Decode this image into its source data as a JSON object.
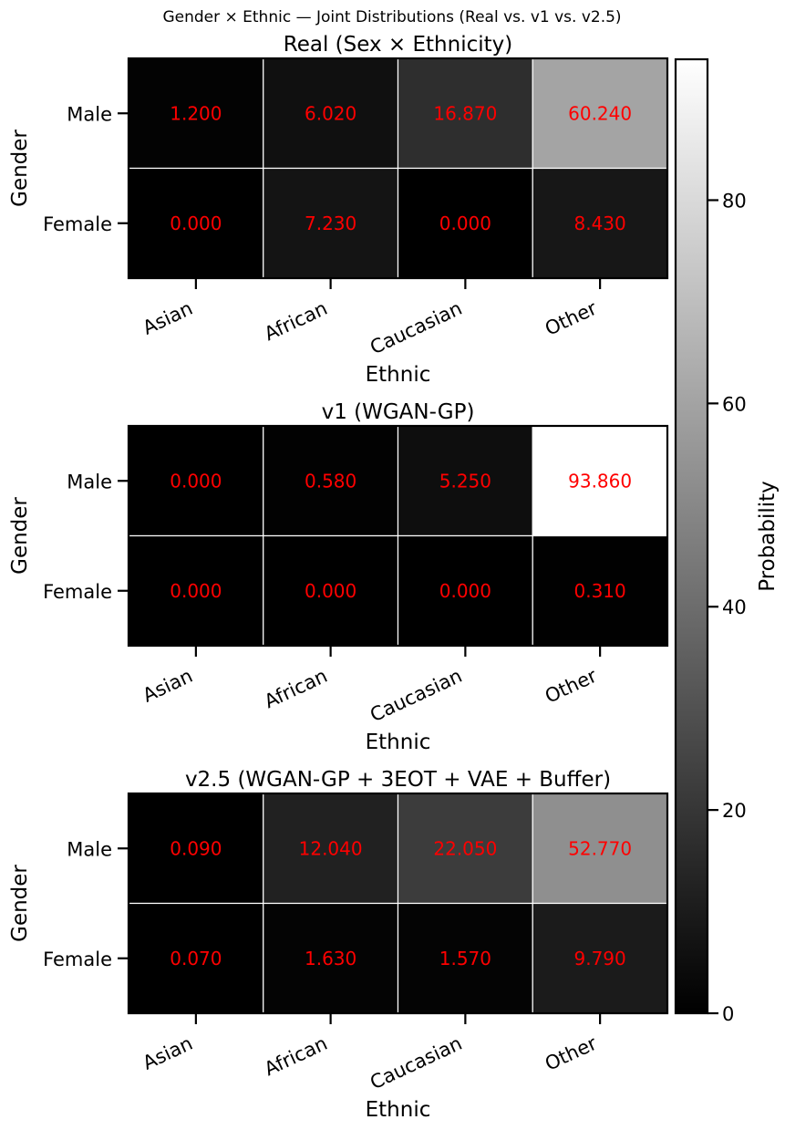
{
  "figure": {
    "suptitle": "Gender × Ethnic — Joint Distributions (Real vs. v1 vs. v2.5)"
  },
  "chart_data": [
    {
      "type": "heatmap",
      "title": "Real (Sex × Ethnicity)",
      "xlabel": "Ethnic",
      "ylabel": "Gender",
      "x_categories": [
        "Asian",
        "African",
        "Caucasian",
        "Other"
      ],
      "y_categories": [
        "Male",
        "Female"
      ],
      "values": [
        [
          1.2,
          6.02,
          16.87,
          60.24
        ],
        [
          0.0,
          7.23,
          0.0,
          8.43
        ]
      ],
      "value_labels": [
        [
          "1.200",
          "6.020",
          "16.870",
          "60.240"
        ],
        [
          "0.000",
          "7.230",
          "0.000",
          "8.430"
        ]
      ]
    },
    {
      "type": "heatmap",
      "title": "v1 (WGAN-GP)",
      "xlabel": "Ethnic",
      "ylabel": "Gender",
      "x_categories": [
        "Asian",
        "African",
        "Caucasian",
        "Other"
      ],
      "y_categories": [
        "Male",
        "Female"
      ],
      "values": [
        [
          0.0,
          0.58,
          5.25,
          93.86
        ],
        [
          0.0,
          0.0,
          0.0,
          0.31
        ]
      ],
      "value_labels": [
        [
          "0.000",
          "0.580",
          "5.250",
          "93.860"
        ],
        [
          "0.000",
          "0.000",
          "0.000",
          "0.310"
        ]
      ]
    },
    {
      "type": "heatmap",
      "title": "v2.5 (WGAN-GP + 3EOT + VAE + Buffer)",
      "xlabel": "Ethnic",
      "ylabel": "Gender",
      "x_categories": [
        "Asian",
        "African",
        "Caucasian",
        "Other"
      ],
      "y_categories": [
        "Male",
        "Female"
      ],
      "values": [
        [
          0.09,
          12.04,
          22.05,
          52.77
        ],
        [
          0.07,
          1.63,
          1.57,
          9.79
        ]
      ],
      "value_labels": [
        [
          "0.090",
          "12.040",
          "22.050",
          "52.770"
        ],
        [
          "0.070",
          "1.630",
          "1.570",
          "9.790"
        ]
      ]
    }
  ],
  "colorbar": {
    "label": "Probability",
    "vmin": 0,
    "vmax": 93.86,
    "ticks": [
      0,
      20,
      40,
      60,
      80
    ],
    "tick_labels": [
      "0",
      "20",
      "40",
      "60",
      "80"
    ],
    "colormap": "gray"
  },
  "colors": {
    "annotation": "#ff0000",
    "grid": "#ffffff",
    "frame": "#000000",
    "background": "#ffffff"
  }
}
